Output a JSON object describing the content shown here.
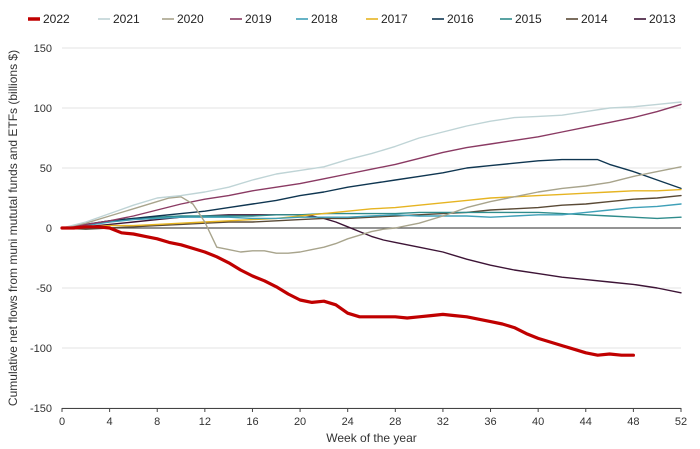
{
  "chart_data": {
    "type": "line",
    "xlabel": "Week of the year",
    "ylabel": "Cumulative net flows from muni mututal funds and ETFs (billions $)",
    "xlim": [
      0,
      52
    ],
    "ylim": [
      -150,
      150
    ],
    "xticks": [
      0,
      4,
      8,
      12,
      16,
      20,
      24,
      28,
      32,
      36,
      40,
      44,
      48,
      52
    ],
    "yticks": [
      -150,
      -100,
      -50,
      0,
      50,
      100,
      150
    ],
    "grid": "horizontal",
    "legend_position": "top",
    "series": [
      {
        "name": "2022",
        "color": "#c00000",
        "width": 3.2,
        "points": [
          [
            0,
            0
          ],
          [
            1,
            0
          ],
          [
            2,
            1
          ],
          [
            3,
            1
          ],
          [
            4,
            0
          ],
          [
            5,
            -4
          ],
          [
            6,
            -5
          ],
          [
            7,
            -7
          ],
          [
            8,
            -9
          ],
          [
            9,
            -12
          ],
          [
            10,
            -14
          ],
          [
            11,
            -17
          ],
          [
            12,
            -20
          ],
          [
            13,
            -24
          ],
          [
            14,
            -29
          ],
          [
            15,
            -35
          ],
          [
            16,
            -40
          ],
          [
            17,
            -44
          ],
          [
            18,
            -49
          ],
          [
            19,
            -55
          ],
          [
            20,
            -60
          ],
          [
            21,
            -62
          ],
          [
            22,
            -61
          ],
          [
            23,
            -64
          ],
          [
            24,
            -71
          ],
          [
            25,
            -74
          ],
          [
            26,
            -74
          ],
          [
            27,
            -74
          ],
          [
            28,
            -74
          ],
          [
            29,
            -75
          ],
          [
            30,
            -74
          ],
          [
            31,
            -73
          ],
          [
            32,
            -72
          ],
          [
            33,
            -73
          ],
          [
            34,
            -74
          ],
          [
            35,
            -76
          ],
          [
            36,
            -78
          ],
          [
            37,
            -80
          ],
          [
            38,
            -83
          ],
          [
            39,
            -88
          ],
          [
            40,
            -92
          ],
          [
            41,
            -95
          ],
          [
            42,
            -98
          ],
          [
            43,
            -101
          ],
          [
            44,
            -104
          ],
          [
            45,
            -106
          ],
          [
            46,
            -105
          ],
          [
            47,
            -106
          ],
          [
            48,
            -106
          ]
        ]
      },
      {
        "name": "2021",
        "color": "#bfd4d6",
        "width": 1.4,
        "points": [
          [
            0,
            0
          ],
          [
            2,
            5
          ],
          [
            4,
            12
          ],
          [
            6,
            19
          ],
          [
            8,
            25
          ],
          [
            10,
            27
          ],
          [
            12,
            30
          ],
          [
            14,
            34
          ],
          [
            16,
            40
          ],
          [
            18,
            45
          ],
          [
            20,
            48
          ],
          [
            22,
            51
          ],
          [
            24,
            57
          ],
          [
            26,
            62
          ],
          [
            28,
            68
          ],
          [
            30,
            75
          ],
          [
            32,
            80
          ],
          [
            34,
            85
          ],
          [
            36,
            89
          ],
          [
            38,
            92
          ],
          [
            40,
            93
          ],
          [
            42,
            94
          ],
          [
            44,
            97
          ],
          [
            46,
            100
          ],
          [
            48,
            101
          ],
          [
            50,
            103
          ],
          [
            52,
            105
          ]
        ]
      },
      {
        "name": "2020",
        "color": "#a8a48c",
        "width": 1.4,
        "points": [
          [
            0,
            0
          ],
          [
            2,
            4
          ],
          [
            4,
            10
          ],
          [
            6,
            16
          ],
          [
            8,
            22
          ],
          [
            9,
            25
          ],
          [
            10,
            26
          ],
          [
            11,
            20
          ],
          [
            12,
            5
          ],
          [
            13,
            -16
          ],
          [
            14,
            -18
          ],
          [
            15,
            -20
          ],
          [
            16,
            -19
          ],
          [
            17,
            -19
          ],
          [
            18,
            -21
          ],
          [
            19,
            -21
          ],
          [
            20,
            -20
          ],
          [
            21,
            -18
          ],
          [
            22,
            -16
          ],
          [
            23,
            -13
          ],
          [
            24,
            -9
          ],
          [
            25,
            -6
          ],
          [
            26,
            -3
          ],
          [
            27,
            -1
          ],
          [
            28,
            0
          ],
          [
            29,
            2
          ],
          [
            30,
            4
          ],
          [
            32,
            10
          ],
          [
            34,
            17
          ],
          [
            36,
            22
          ],
          [
            38,
            26
          ],
          [
            40,
            30
          ],
          [
            42,
            33
          ],
          [
            44,
            35
          ],
          [
            46,
            38
          ],
          [
            48,
            43
          ],
          [
            50,
            47
          ],
          [
            52,
            51
          ]
        ]
      },
      {
        "name": "2019",
        "color": "#8a3a63",
        "width": 1.4,
        "points": [
          [
            0,
            0
          ],
          [
            2,
            3
          ],
          [
            4,
            6
          ],
          [
            6,
            10
          ],
          [
            8,
            15
          ],
          [
            10,
            20
          ],
          [
            12,
            24
          ],
          [
            14,
            27
          ],
          [
            16,
            31
          ],
          [
            18,
            34
          ],
          [
            20,
            37
          ],
          [
            22,
            41
          ],
          [
            24,
            45
          ],
          [
            26,
            49
          ],
          [
            28,
            53
          ],
          [
            30,
            58
          ],
          [
            32,
            63
          ],
          [
            34,
            67
          ],
          [
            36,
            70
          ],
          [
            38,
            73
          ],
          [
            40,
            76
          ],
          [
            42,
            80
          ],
          [
            44,
            84
          ],
          [
            46,
            88
          ],
          [
            48,
            92
          ],
          [
            50,
            97
          ],
          [
            52,
            103
          ]
        ]
      },
      {
        "name": "2018",
        "color": "#3fa0b8",
        "width": 1.4,
        "points": [
          [
            0,
            0
          ],
          [
            2,
            2
          ],
          [
            4,
            5
          ],
          [
            6,
            7
          ],
          [
            8,
            8
          ],
          [
            10,
            9
          ],
          [
            12,
            9
          ],
          [
            14,
            9
          ],
          [
            16,
            8
          ],
          [
            18,
            8
          ],
          [
            20,
            9
          ],
          [
            22,
            9
          ],
          [
            24,
            9
          ],
          [
            26,
            10
          ],
          [
            28,
            11
          ],
          [
            30,
            10
          ],
          [
            32,
            10
          ],
          [
            34,
            10
          ],
          [
            36,
            9
          ],
          [
            38,
            10
          ],
          [
            40,
            11
          ],
          [
            42,
            11
          ],
          [
            44,
            13
          ],
          [
            46,
            15
          ],
          [
            48,
            17
          ],
          [
            50,
            18
          ],
          [
            52,
            20
          ]
        ]
      },
      {
        "name": "2017",
        "color": "#e6b422",
        "width": 1.4,
        "points": [
          [
            0,
            0
          ],
          [
            2,
            1
          ],
          [
            4,
            2
          ],
          [
            6,
            2
          ],
          [
            8,
            3
          ],
          [
            10,
            4
          ],
          [
            12,
            5
          ],
          [
            14,
            6
          ],
          [
            16,
            7
          ],
          [
            18,
            8
          ],
          [
            20,
            10
          ],
          [
            22,
            12
          ],
          [
            24,
            14
          ],
          [
            26,
            16
          ],
          [
            28,
            17
          ],
          [
            30,
            19
          ],
          [
            32,
            21
          ],
          [
            34,
            23
          ],
          [
            36,
            25
          ],
          [
            38,
            26
          ],
          [
            40,
            27
          ],
          [
            42,
            28
          ],
          [
            44,
            29
          ],
          [
            46,
            30
          ],
          [
            48,
            31
          ],
          [
            50,
            31
          ],
          [
            52,
            32
          ]
        ]
      },
      {
        "name": "2016",
        "color": "#0f3651",
        "width": 1.4,
        "points": [
          [
            0,
            0
          ],
          [
            2,
            3
          ],
          [
            4,
            6
          ],
          [
            6,
            8
          ],
          [
            8,
            10
          ],
          [
            10,
            12
          ],
          [
            12,
            14
          ],
          [
            14,
            17
          ],
          [
            16,
            20
          ],
          [
            18,
            23
          ],
          [
            20,
            27
          ],
          [
            22,
            30
          ],
          [
            24,
            34
          ],
          [
            26,
            37
          ],
          [
            28,
            40
          ],
          [
            30,
            43
          ],
          [
            32,
            46
          ],
          [
            34,
            50
          ],
          [
            36,
            52
          ],
          [
            38,
            54
          ],
          [
            40,
            56
          ],
          [
            42,
            57
          ],
          [
            44,
            57
          ],
          [
            45,
            57
          ],
          [
            46,
            53
          ],
          [
            48,
            47
          ],
          [
            50,
            40
          ],
          [
            52,
            33
          ]
        ]
      },
      {
        "name": "2015",
        "color": "#2f8c8c",
        "width": 1.4,
        "points": [
          [
            0,
            0
          ],
          [
            2,
            3
          ],
          [
            4,
            6
          ],
          [
            6,
            8
          ],
          [
            8,
            9
          ],
          [
            10,
            10
          ],
          [
            12,
            10
          ],
          [
            14,
            10
          ],
          [
            16,
            10
          ],
          [
            18,
            11
          ],
          [
            20,
            11
          ],
          [
            22,
            12
          ],
          [
            24,
            12
          ],
          [
            26,
            12
          ],
          [
            28,
            12
          ],
          [
            30,
            13
          ],
          [
            32,
            13
          ],
          [
            34,
            13
          ],
          [
            36,
            13
          ],
          [
            38,
            13
          ],
          [
            40,
            13
          ],
          [
            42,
            12
          ],
          [
            44,
            11
          ],
          [
            46,
            10
          ],
          [
            48,
            9
          ],
          [
            50,
            8
          ],
          [
            52,
            9
          ]
        ]
      },
      {
        "name": "2014",
        "color": "#5a4a36",
        "width": 1.4,
        "points": [
          [
            0,
            0
          ],
          [
            2,
            -1
          ],
          [
            4,
            0
          ],
          [
            6,
            1
          ],
          [
            8,
            2
          ],
          [
            10,
            3
          ],
          [
            12,
            4
          ],
          [
            14,
            5
          ],
          [
            16,
            5
          ],
          [
            18,
            6
          ],
          [
            20,
            7
          ],
          [
            22,
            8
          ],
          [
            24,
            8
          ],
          [
            26,
            9
          ],
          [
            28,
            10
          ],
          [
            30,
            11
          ],
          [
            32,
            12
          ],
          [
            34,
            13
          ],
          [
            36,
            15
          ],
          [
            38,
            16
          ],
          [
            40,
            17
          ],
          [
            42,
            19
          ],
          [
            44,
            20
          ],
          [
            46,
            22
          ],
          [
            48,
            24
          ],
          [
            50,
            25
          ],
          [
            52,
            27
          ]
        ]
      },
      {
        "name": "2013",
        "color": "#3d1436",
        "width": 1.4,
        "points": [
          [
            0,
            0
          ],
          [
            2,
            1
          ],
          [
            4,
            3
          ],
          [
            6,
            5
          ],
          [
            8,
            7
          ],
          [
            10,
            9
          ],
          [
            12,
            10
          ],
          [
            14,
            11
          ],
          [
            16,
            11
          ],
          [
            18,
            11
          ],
          [
            20,
            11
          ],
          [
            21,
            10
          ],
          [
            22,
            8
          ],
          [
            23,
            5
          ],
          [
            24,
            1
          ],
          [
            25,
            -3
          ],
          [
            26,
            -7
          ],
          [
            27,
            -10
          ],
          [
            28,
            -12
          ],
          [
            30,
            -16
          ],
          [
            32,
            -20
          ],
          [
            34,
            -26
          ],
          [
            36,
            -31
          ],
          [
            38,
            -35
          ],
          [
            40,
            -38
          ],
          [
            42,
            -41
          ],
          [
            44,
            -43
          ],
          [
            46,
            -45
          ],
          [
            48,
            -47
          ],
          [
            50,
            -50
          ],
          [
            52,
            -54
          ]
        ]
      }
    ]
  }
}
